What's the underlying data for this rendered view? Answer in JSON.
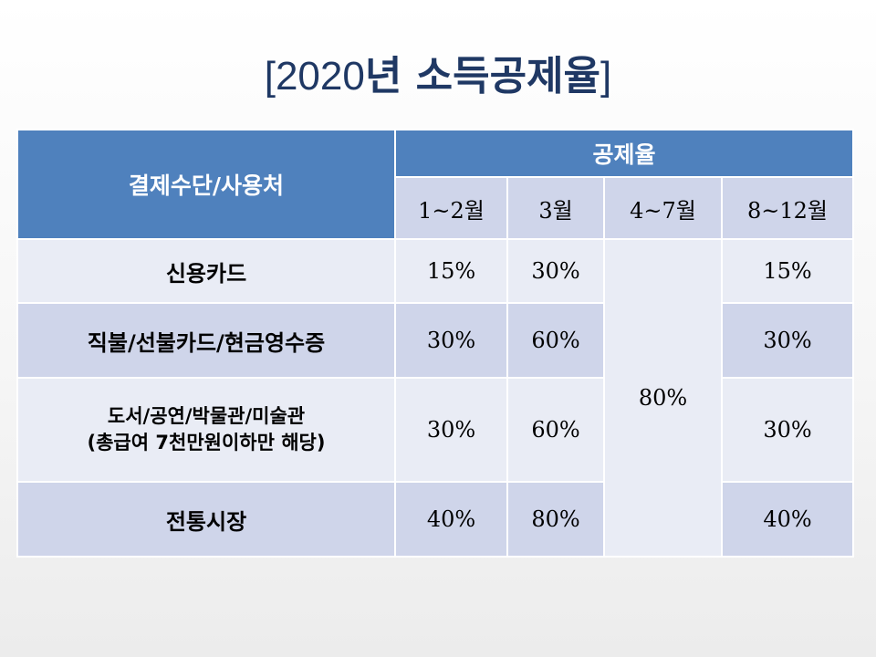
{
  "title": {
    "open_bracket": "[",
    "year": "2020",
    "main": "년 소득공제율",
    "close_bracket": "]"
  },
  "table": {
    "payment_header": "결제수단/사용처",
    "rate_header": "공제율",
    "periods": [
      "1~2월",
      "3월",
      "4~7월",
      "8~12월"
    ],
    "merged_value": "80%",
    "rows": [
      {
        "label": [
          "신용카드"
        ],
        "jan_feb": "15%",
        "mar": "30%",
        "aug_dec": "15%"
      },
      {
        "label": [
          "직불/선불카드/현금영수증"
        ],
        "jan_feb": "30%",
        "mar": "60%",
        "aug_dec": "30%"
      },
      {
        "label": [
          "도서/공연/박물관/미술관",
          "(총급여 7천만원이하만 해당)"
        ],
        "jan_feb": "30%",
        "mar": "60%",
        "aug_dec": "30%"
      },
      {
        "label": [
          "전통시장"
        ],
        "jan_feb": "40%",
        "mar": "80%",
        "aug_dec": "40%"
      }
    ]
  },
  "colors": {
    "header_blue": "#4f81bd",
    "band_dark": "#cfd5ea",
    "band_light": "#e9ecf5",
    "title_navy": "#1f3864"
  }
}
